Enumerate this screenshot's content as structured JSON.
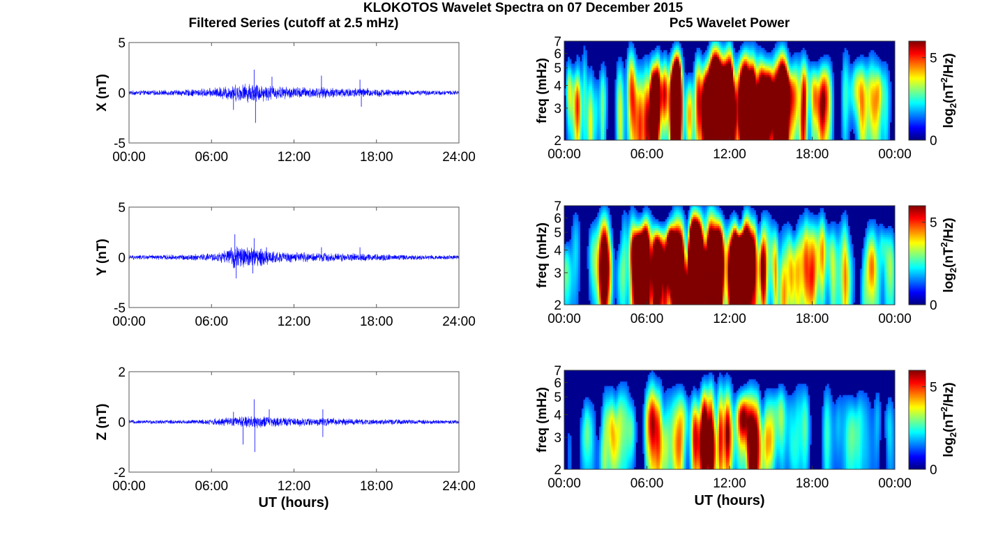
{
  "figure": {
    "title": "KLOKOTOS Wavelet Spectra on 07 December 2015",
    "left_title": "Filtered Series (cutoff at 2.5 mHz)",
    "right_title": "Pc5 Wavelet Power",
    "xlabel": "UT (hours)"
  },
  "colors": {
    "trace": "#0000ff",
    "background": "#00008f"
  },
  "chart_data": [
    {
      "type": "line",
      "name": "X",
      "ylabel": "X (nT)",
      "x_ticks": [
        "00:00",
        "06:00",
        "12:00",
        "18:00",
        "24:00"
      ],
      "xlim": [
        0,
        24
      ],
      "ylim": [
        -5,
        5
      ],
      "y_ticks": [
        "5",
        "0",
        "-5"
      ],
      "y_tick_values": [
        5,
        0,
        -5
      ],
      "base_amplitude": 0.25,
      "envelope": [
        {
          "hour": 0,
          "amp": 0.25
        },
        {
          "hour": 3,
          "amp": 0.3
        },
        {
          "hour": 6,
          "amp": 0.5
        },
        {
          "hour": 7.5,
          "amp": 0.9
        },
        {
          "hour": 9,
          "amp": 1.1
        },
        {
          "hour": 11,
          "amp": 0.7
        },
        {
          "hour": 14,
          "amp": 0.6
        },
        {
          "hour": 17,
          "amp": 0.55
        },
        {
          "hour": 20,
          "amp": 0.3
        },
        {
          "hour": 24,
          "amp": 0.25
        }
      ],
      "spikes": [
        {
          "hour": 7.6,
          "value": -1.7
        },
        {
          "hour": 9.1,
          "value": 2.3
        },
        {
          "hour": 9.2,
          "value": -3.0
        },
        {
          "hour": 10.4,
          "value": 1.6
        },
        {
          "hour": 14.0,
          "value": 1.7
        },
        {
          "hour": 16.8,
          "value": 1.3
        },
        {
          "hour": 16.9,
          "value": -1.4
        }
      ]
    },
    {
      "type": "line",
      "name": "Y",
      "ylabel": "Y (nT)",
      "x_ticks": [
        "00:00",
        "06:00",
        "12:00",
        "18:00",
        "24:00"
      ],
      "xlim": [
        0,
        24
      ],
      "ylim": [
        -5,
        5
      ],
      "y_ticks": [
        "5",
        "0",
        "-5"
      ],
      "y_tick_values": [
        5,
        0,
        -5
      ],
      "base_amplitude": 0.25,
      "envelope": [
        {
          "hour": 0,
          "amp": 0.25
        },
        {
          "hour": 4,
          "amp": 0.3
        },
        {
          "hour": 6.5,
          "amp": 0.5
        },
        {
          "hour": 7.8,
          "amp": 1.3
        },
        {
          "hour": 9,
          "amp": 1.2
        },
        {
          "hour": 11,
          "amp": 0.6
        },
        {
          "hour": 14,
          "amp": 0.5
        },
        {
          "hour": 17,
          "amp": 0.45
        },
        {
          "hour": 20,
          "amp": 0.3
        },
        {
          "hour": 24,
          "amp": 0.25
        }
      ],
      "spikes": [
        {
          "hour": 7.7,
          "value": 2.3
        },
        {
          "hour": 7.8,
          "value": -2.1
        },
        {
          "hour": 9.1,
          "value": 1.9
        },
        {
          "hour": 9.0,
          "value": -1.6
        },
        {
          "hour": 10.0,
          "value": 1.0
        },
        {
          "hour": 14.0,
          "value": 1.0
        },
        {
          "hour": 16.8,
          "value": 1.0
        }
      ]
    },
    {
      "type": "line",
      "name": "Z",
      "ylabel": "Z (nT)",
      "x_ticks": [
        "00:00",
        "06:00",
        "12:00",
        "18:00",
        "24:00"
      ],
      "xlim": [
        0,
        24
      ],
      "ylim": [
        -2,
        2
      ],
      "y_ticks": [
        "2",
        "0",
        "-2"
      ],
      "y_tick_values": [
        2,
        0,
        -2
      ],
      "base_amplitude": 0.08,
      "envelope": [
        {
          "hour": 0,
          "amp": 0.08
        },
        {
          "hour": 5,
          "amp": 0.1
        },
        {
          "hour": 7.5,
          "amp": 0.2
        },
        {
          "hour": 9,
          "amp": 0.3
        },
        {
          "hour": 11,
          "amp": 0.2
        },
        {
          "hour": 14,
          "amp": 0.18
        },
        {
          "hour": 18,
          "amp": 0.12
        },
        {
          "hour": 24,
          "amp": 0.08
        }
      ],
      "spikes": [
        {
          "hour": 9.1,
          "value": 0.9
        },
        {
          "hour": 9.15,
          "value": -1.2
        },
        {
          "hour": 8.3,
          "value": -0.9
        },
        {
          "hour": 7.6,
          "value": 0.4
        },
        {
          "hour": 10.2,
          "value": 0.5
        },
        {
          "hour": 14.1,
          "value": 0.5
        },
        {
          "hour": 14.1,
          "value": -0.6
        }
      ]
    },
    {
      "type": "heatmap",
      "name": "X wavelet power",
      "ylabel": "freq (mHz)",
      "xlabel": "",
      "x_ticks": [
        "00:00",
        "06:00",
        "12:00",
        "18:00",
        "00:00"
      ],
      "xlim": [
        0,
        24
      ],
      "ylim": [
        2,
        7
      ],
      "y_scale": "log",
      "y_ticks": [
        "7",
        "6",
        "5",
        "4",
        "3",
        "2"
      ],
      "y_tick_values": [
        7,
        6,
        5,
        4,
        3,
        2
      ],
      "colorbar": {
        "label": "log2(nT2/Hz)",
        "range": [
          0,
          6
        ],
        "ticks": [
          "5",
          "0"
        ],
        "tick_values": [
          5,
          0
        ],
        "colormap": "jet"
      },
      "intensity": 1.0
    },
    {
      "type": "heatmap",
      "name": "Y wavelet power",
      "ylabel": "freq (mHz)",
      "xlabel": "",
      "x_ticks": [
        "00:00",
        "06:00",
        "12:00",
        "18:00",
        "00:00"
      ],
      "xlim": [
        0,
        24
      ],
      "ylim": [
        2,
        7
      ],
      "y_scale": "log",
      "y_ticks": [
        "7",
        "6",
        "5",
        "4",
        "3",
        "2"
      ],
      "y_tick_values": [
        7,
        6,
        5,
        4,
        3,
        2
      ],
      "colorbar": {
        "label": "log2(nT2/Hz)",
        "range": [
          0,
          6
        ],
        "ticks": [
          "5",
          "0"
        ],
        "tick_values": [
          5,
          0
        ],
        "colormap": "jet"
      },
      "intensity": 1.0
    },
    {
      "type": "heatmap",
      "name": "Z wavelet power",
      "ylabel": "freq (mHz)",
      "xlabel": "",
      "x_ticks": [
        "00:00",
        "06:00",
        "12:00",
        "18:00",
        "00:00"
      ],
      "xlim": [
        0,
        24
      ],
      "ylim": [
        2,
        7
      ],
      "y_scale": "log",
      "y_ticks": [
        "7",
        "6",
        "5",
        "4",
        "3",
        "2"
      ],
      "y_tick_values": [
        7,
        6,
        5,
        4,
        3,
        2
      ],
      "colorbar": {
        "label": "log2(nT2/Hz)",
        "range": [
          0,
          6
        ],
        "ticks": [
          "5",
          "0"
        ],
        "tick_values": [
          5,
          0
        ],
        "colormap": "jet"
      },
      "intensity": 0.45
    }
  ]
}
